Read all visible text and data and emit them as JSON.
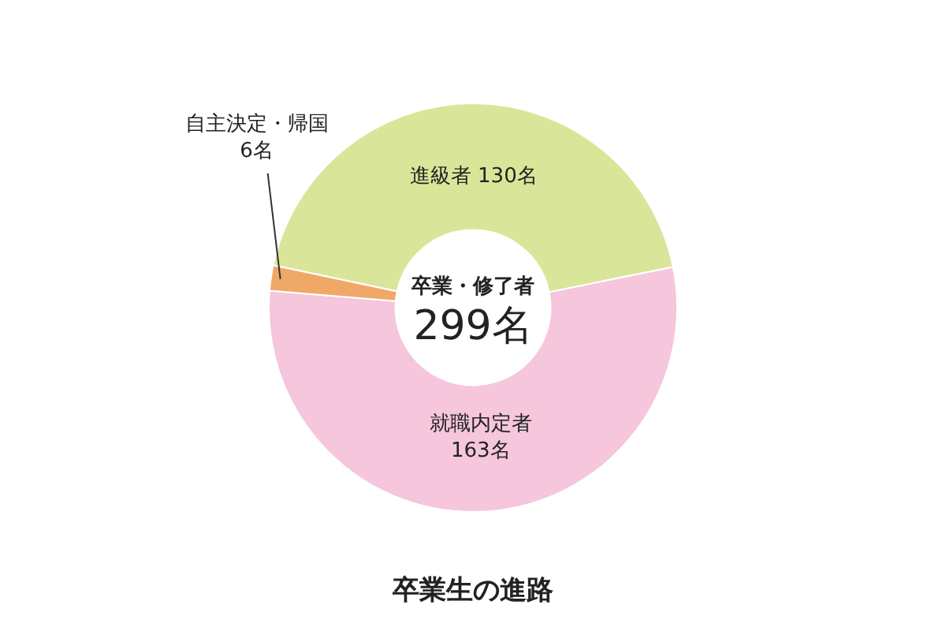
{
  "chart_data": {
    "type": "donut",
    "title": "卒業生の進路",
    "categories": [
      "進級者",
      "就職内定者",
      "自主決定・帰国"
    ],
    "values": [
      130,
      163,
      6
    ],
    "value_labels": [
      "130名",
      "163名",
      "6名"
    ],
    "colors": [
      "#d9e69a",
      "#f5c6dc",
      "#f0a868"
    ],
    "annotations": [
      "卒業・修了者",
      "299名"
    ],
    "legend": false
  }
}
